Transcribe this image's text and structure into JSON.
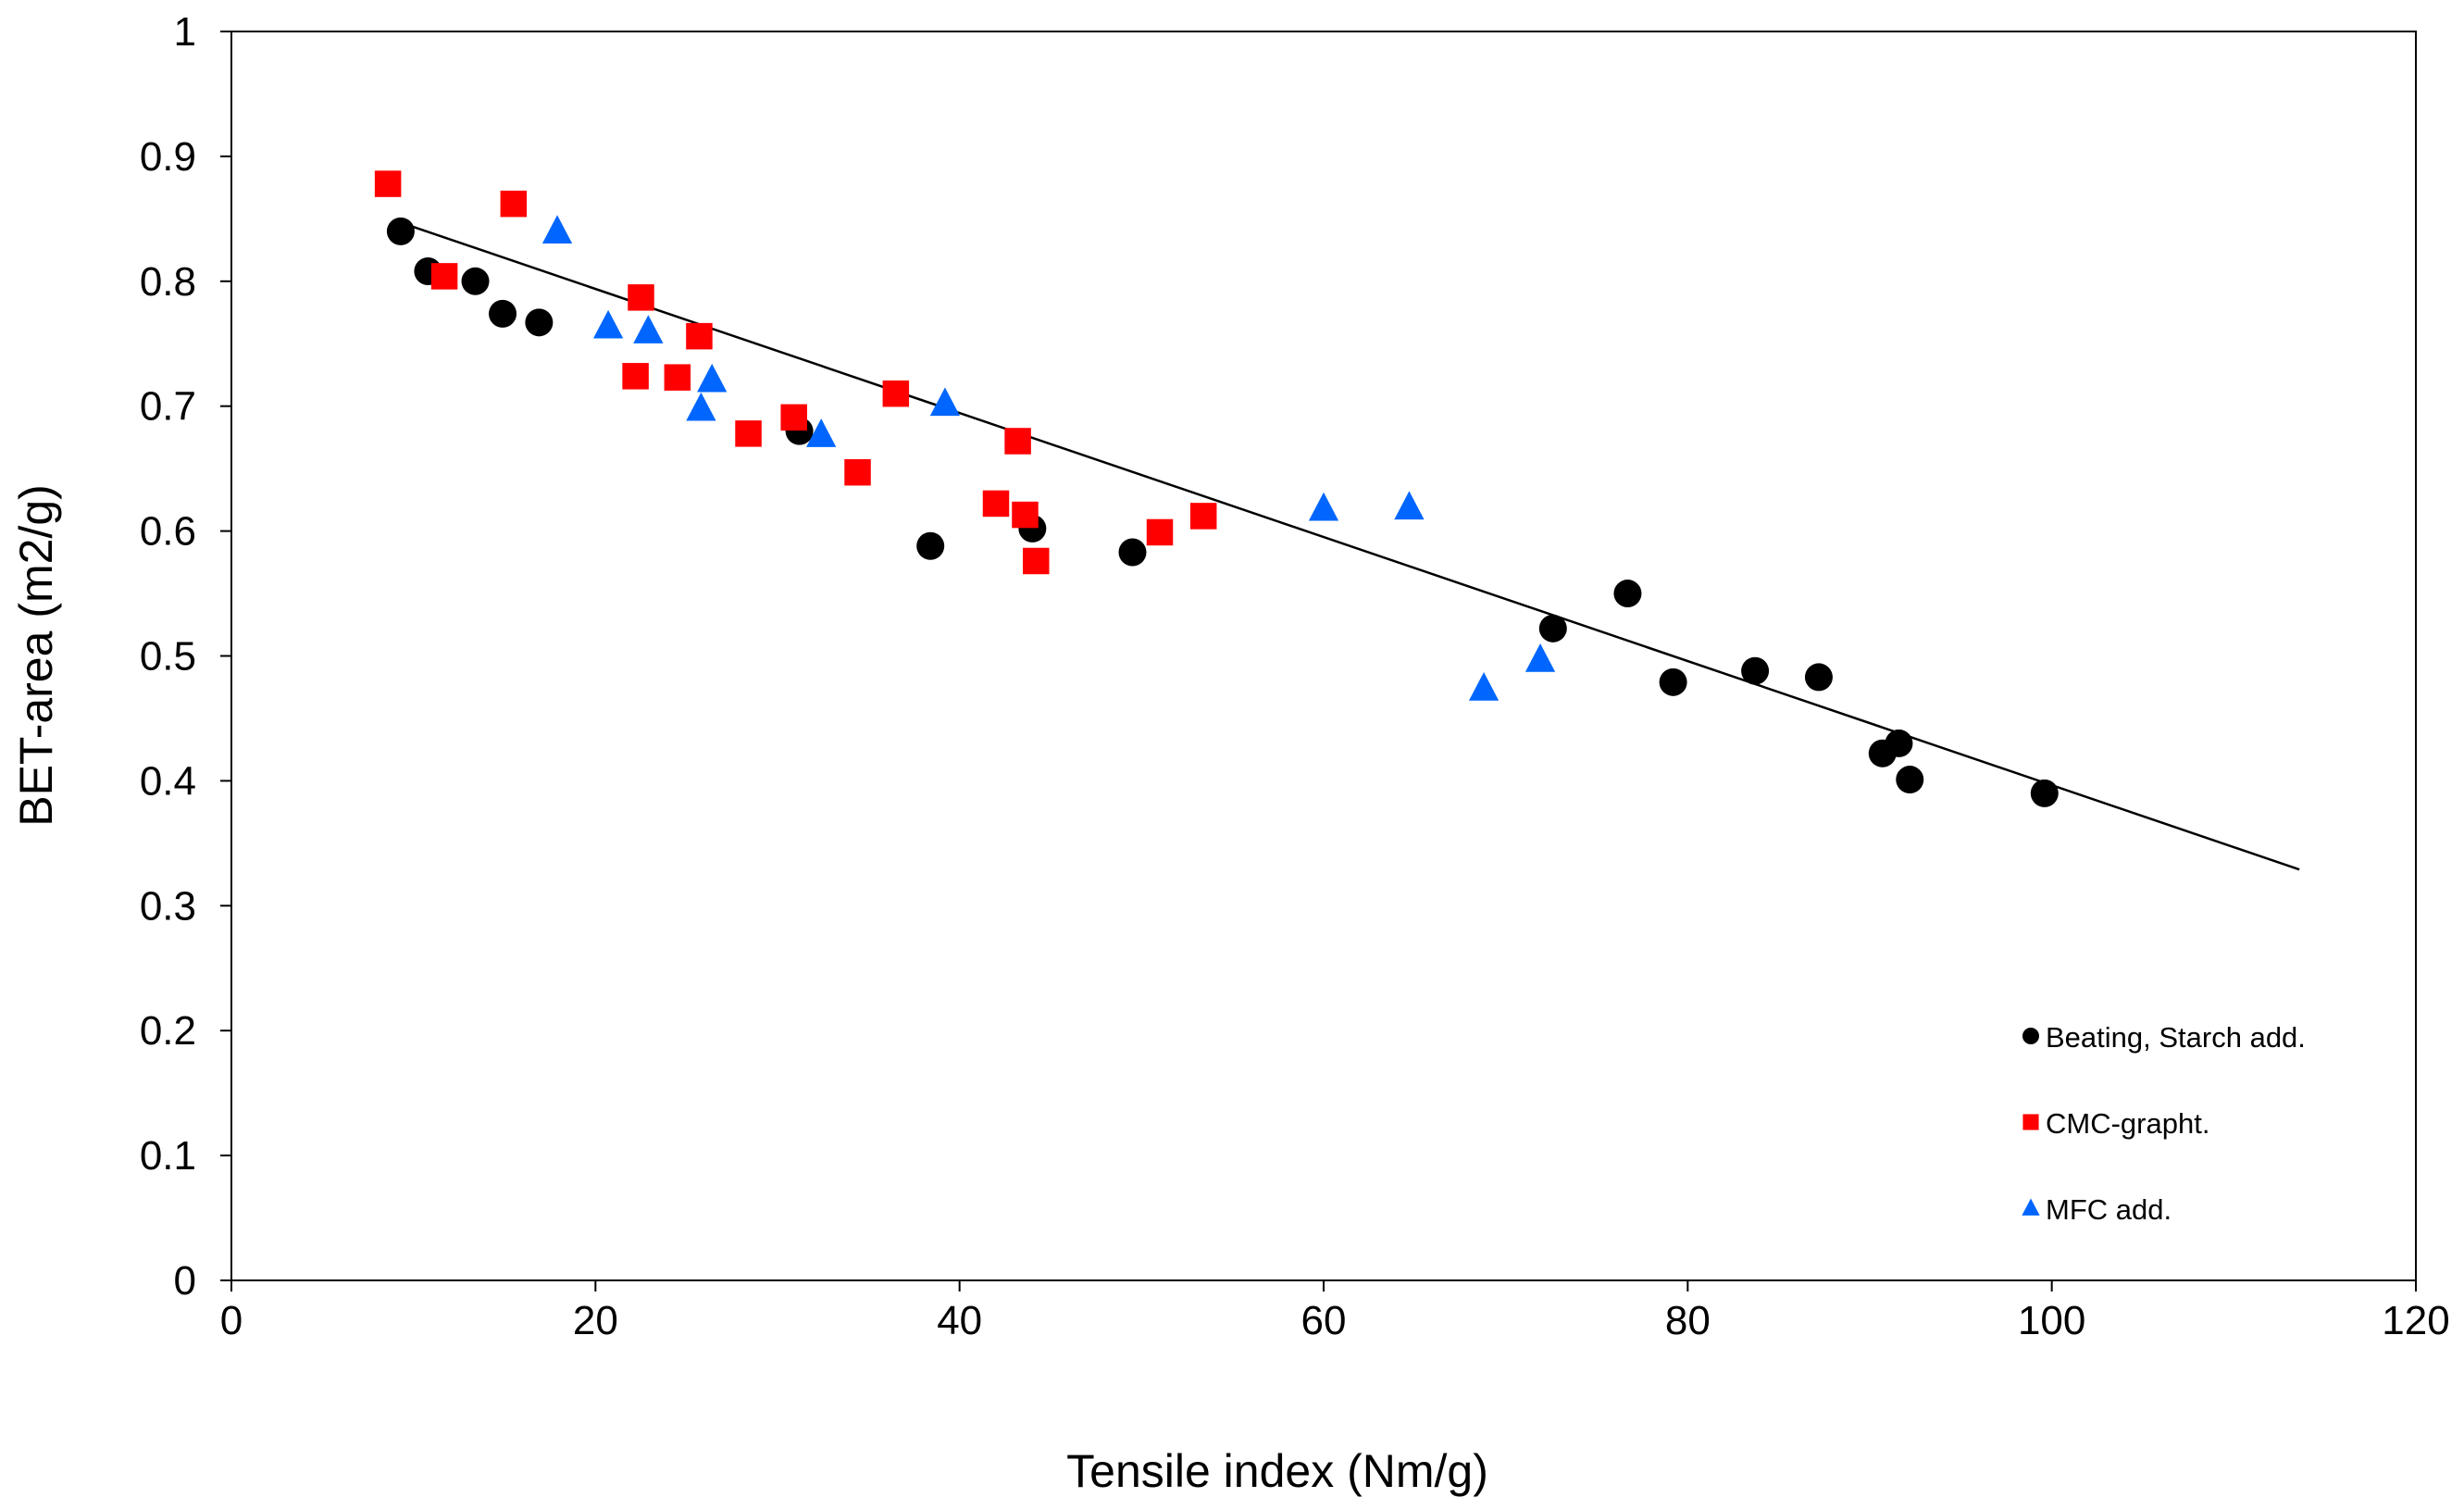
{
  "chart_data": {
    "type": "scatter",
    "title": "",
    "xlabel": "Tensile index (Nm/g)",
    "ylabel": "BET-area (m2/g)",
    "xlim": [
      0,
      120
    ],
    "ylim": [
      0,
      1
    ],
    "xticks": [
      0,
      20,
      40,
      60,
      80,
      100,
      120
    ],
    "yticks": [
      0,
      0.1,
      0.2,
      0.3,
      0.4,
      0.5,
      0.6,
      0.7,
      0.8,
      0.9,
      1
    ],
    "ytick_labels": [
      "0",
      "0.1",
      "0.2",
      "0.3",
      "0.4",
      "0.5",
      "0.6",
      "0.7",
      "0.8",
      "0.9",
      "1"
    ],
    "grid": false,
    "legend_position": "bottom-right",
    "series": [
      {
        "name": "Beating, Starch add.",
        "marker": "circle",
        "color": "#000000",
        "points": [
          [
            9.3,
            0.84
          ],
          [
            10.8,
            0.808
          ],
          [
            13.4,
            0.8
          ],
          [
            14.9,
            0.774
          ],
          [
            16.9,
            0.767
          ],
          [
            31.2,
            0.68
          ],
          [
            38.4,
            0.588
          ],
          [
            44.0,
            0.602
          ],
          [
            49.5,
            0.583
          ],
          [
            72.6,
            0.522
          ],
          [
            76.7,
            0.55
          ],
          [
            79.2,
            0.479
          ],
          [
            83.7,
            0.488
          ],
          [
            87.2,
            0.483
          ],
          [
            90.7,
            0.422
          ],
          [
            91.6,
            0.43
          ],
          [
            92.2,
            0.401
          ],
          [
            99.6,
            0.39
          ]
        ]
      },
      {
        "name": "CMC-grapht.",
        "marker": "square",
        "color": "#ff0000",
        "points": [
          [
            8.6,
            0.878
          ],
          [
            11.7,
            0.804
          ],
          [
            15.5,
            0.862
          ],
          [
            22.2,
            0.724
          ],
          [
            22.5,
            0.787
          ],
          [
            24.5,
            0.723
          ],
          [
            25.7,
            0.756
          ],
          [
            28.4,
            0.678
          ],
          [
            30.9,
            0.691
          ],
          [
            34.4,
            0.647
          ],
          [
            36.5,
            0.71
          ],
          [
            42.0,
            0.622
          ],
          [
            43.2,
            0.672
          ],
          [
            43.6,
            0.613
          ],
          [
            44.2,
            0.576
          ],
          [
            51.0,
            0.599
          ],
          [
            53.4,
            0.612
          ]
        ]
      },
      {
        "name": "MFC add.",
        "marker": "triangle",
        "color": "#0066ff",
        "points": [
          [
            17.9,
            0.84
          ],
          [
            20.7,
            0.764
          ],
          [
            22.9,
            0.76
          ],
          [
            25.8,
            0.698
          ],
          [
            26.4,
            0.721
          ],
          [
            32.4,
            0.677
          ],
          [
            39.2,
            0.702
          ],
          [
            60.0,
            0.618
          ],
          [
            64.7,
            0.619
          ],
          [
            68.8,
            0.474
          ],
          [
            71.9,
            0.497
          ]
        ]
      }
    ],
    "trendline": {
      "type": "linear",
      "color": "#000000",
      "from": [
        9.3,
        0.847
      ],
      "to": [
        113.6,
        0.329
      ]
    },
    "legend_entries": [
      "Beating, Starch add.",
      "CMC-grapht.",
      "MFC add."
    ]
  }
}
